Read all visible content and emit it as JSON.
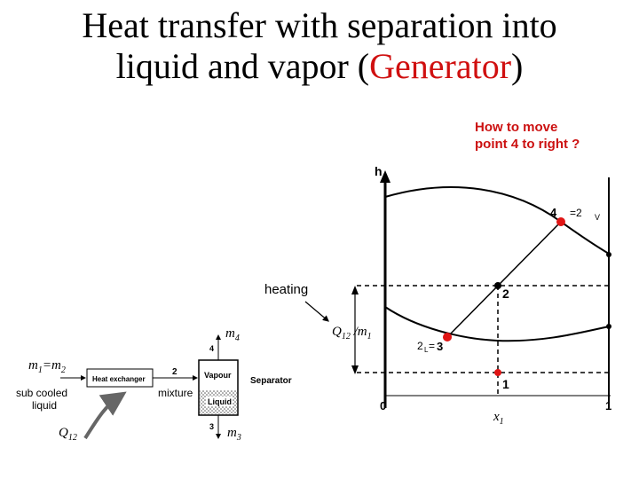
{
  "title": {
    "line1": "Heat transfer with separation into",
    "line2_before": "liquid and vapor (",
    "line2_highlight": "Generator",
    "line2_after": ")"
  },
  "question": {
    "line1": "How to move",
    "line2": "point 4 to right  ?"
  },
  "heating_label": "heating",
  "chart": {
    "axis_h": "h",
    "axis_x": "x1",
    "tick_0": "0",
    "tick_1": "1",
    "point_4": "4",
    "point_4_eq": "=2",
    "point_4_sub": "V",
    "point_2": "2",
    "point_1": "1",
    "point_3": "3",
    "point_3_pre": "2",
    "point_3_sub": "L",
    "point_3_eq": "=",
    "q_ratio": "Q12 /m1"
  },
  "schematic": {
    "m1_eq": "m1=m2",
    "sub_cooled": "sub cooled",
    "liquid": "liquid",
    "q12": "Q12",
    "heat_exchanger": "Heat exchanger",
    "node_2": "2",
    "mixture": "mixture",
    "vapour": "Vapour",
    "liquid_box": "Liquid",
    "separator": "Separator",
    "node_4": "4",
    "node_3": "3",
    "m4": "m4",
    "m3": "m3"
  },
  "colors": {
    "accent_red": "#d01010",
    "point_red": "#e01515"
  }
}
